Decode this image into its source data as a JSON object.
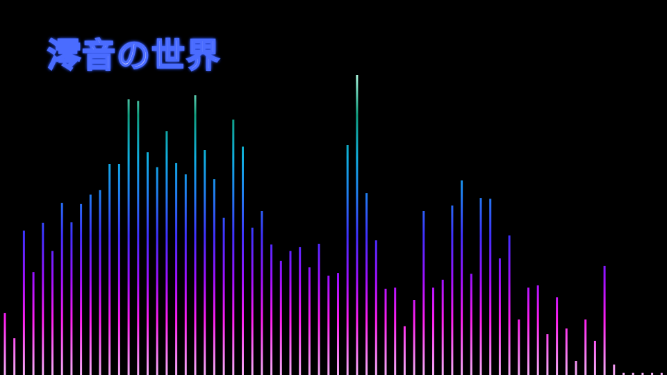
{
  "title": "澪音の世界",
  "visualizer": {
    "bar_count": 70,
    "levels_percent": [
      16.5,
      9.8,
      38.5,
      27.4,
      40.6,
      33.1,
      45.9,
      40.7,
      45.6,
      48.1,
      49.3,
      56.3,
      56.3,
      73.5,
      73.1,
      59.4,
      55.4,
      65.0,
      56.5,
      53.5,
      74.6,
      60.0,
      52.2,
      41.9,
      68.1,
      60.9,
      39.3,
      43.7,
      34.8,
      30.4,
      33.1,
      34.1,
      28.7,
      35.0,
      26.5,
      27.2,
      61.3,
      80.0,
      48.5,
      35.9,
      23.0,
      23.3,
      13.0,
      20.0,
      43.7,
      23.3,
      25.4,
      45.2,
      51.9,
      27.0,
      47.2,
      47.0,
      31.1,
      37.2,
      14.8,
      23.3,
      23.9,
      10.9,
      20.7,
      12.4,
      3.7,
      14.8,
      9.1,
      29.1,
      2.8,
      0.6,
      0.6,
      0.6,
      0.6,
      0.6
    ],
    "gradient_colors": [
      "#f4b0f4",
      "#ff20f0",
      "#a010ff",
      "#4030ff",
      "#2080f0",
      "#10b0e0",
      "#10a080",
      "#b0f8e0"
    ],
    "background": "#000000"
  }
}
